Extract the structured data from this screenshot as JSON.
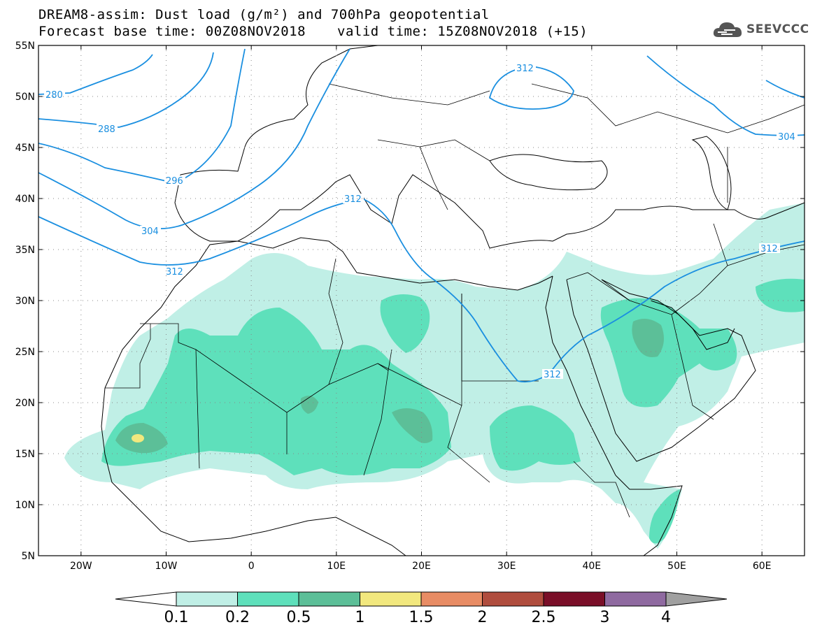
{
  "header": {
    "line1": "DREAM8-assim: Dust load (g/m²) and 700hPa geopotential",
    "line2a": "Forecast base time: 00Z08NOV2018",
    "line2b": "valid time: 15Z08NOV2018 (+15)",
    "logo_text": "SEEVCCC"
  },
  "axes": {
    "lat_labels": [
      "55N",
      "50N",
      "45N",
      "40N",
      "35N",
      "30N",
      "25N",
      "20N",
      "15N",
      "10N",
      "5N"
    ],
    "lon_labels": [
      "20W",
      "10W",
      "0",
      "10E",
      "20E",
      "30E",
      "40E",
      "50E",
      "60E"
    ]
  },
  "contours": {
    "labels": [
      "280",
      "288",
      "296",
      "304",
      "312",
      "312",
      "312",
      "312",
      "304",
      "312"
    ]
  },
  "colorbar": {
    "labels": [
      "0.1",
      "0.2",
      "0.5",
      "1",
      "1.5",
      "2",
      "2.5",
      "3",
      "4"
    ],
    "colors": [
      "#c0efe6",
      "#5ee0bb",
      "#5cbf98",
      "#f2e87e",
      "#e88c64",
      "#b04d3e",
      "#7a0f28",
      "#8f6aa0",
      "#a0a0a0"
    ]
  },
  "colors": {
    "contour": "#1a8fe0",
    "coast": "#000000",
    "dust_01": "#c0efe6",
    "dust_02": "#5ee0bb",
    "dust_05": "#5cbf98",
    "dust_1": "#f2e87e"
  }
}
